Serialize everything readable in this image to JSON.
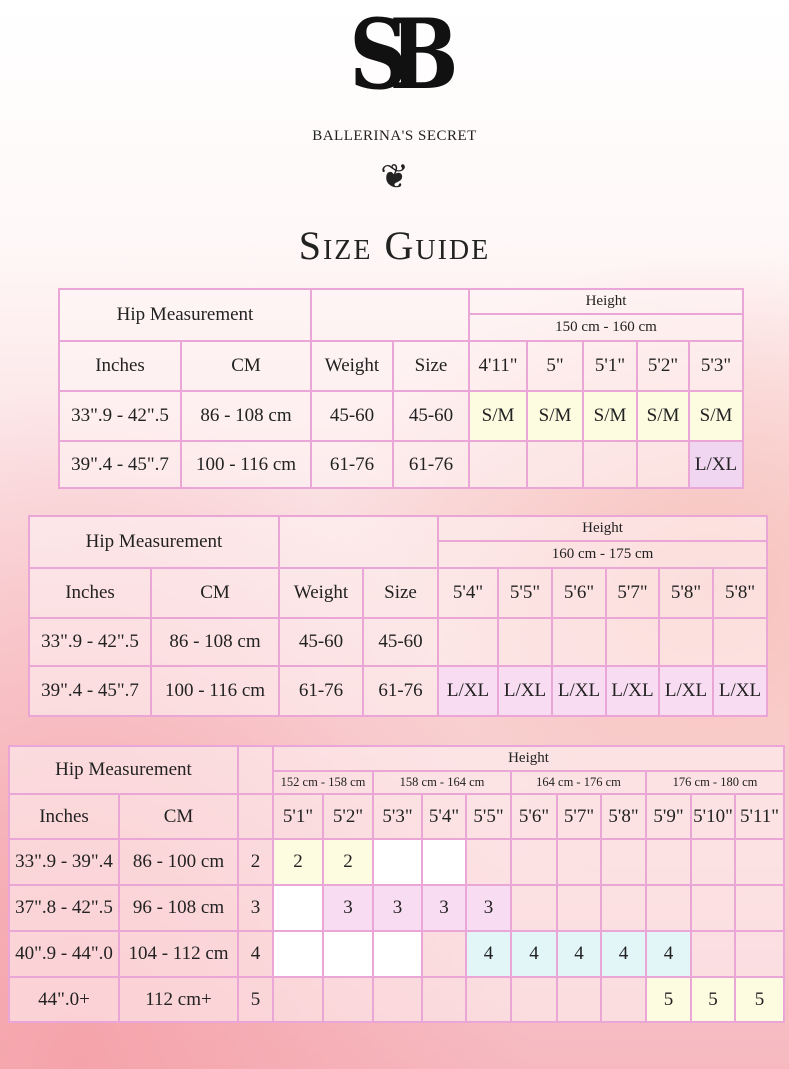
{
  "brand": {
    "monogram": "SB",
    "name": "BALLERINA'S SECRET",
    "ornament": "❦"
  },
  "title": "Size Guide",
  "colors": {
    "border": "#eaa6d6",
    "yellow": "#fdfbe0",
    "pink": "#f8dcf1",
    "blue": "#e2f6f8",
    "lavender": "#f1d6f1"
  },
  "tables": [
    {
      "hip_label": "Hip Measurement",
      "height_label": "Height",
      "ranges": [
        "150 cm - 160 cm"
      ],
      "columns": [
        "Inches",
        "CM",
        "Weight",
        "Size"
      ],
      "heights": [
        "4'11\"",
        "5\"",
        "5'1\"",
        "5'2\"",
        "5'3\""
      ],
      "rows": [
        {
          "cells": [
            "33\".9 - 42\".5",
            "86 - 108 cm",
            "45-60",
            "45-60"
          ],
          "sizes": [
            "S/M",
            "S/M",
            "S/M",
            "S/M",
            "S/M"
          ],
          "fills": [
            "yellow",
            "yellow",
            "yellow",
            "yellow",
            "yellow"
          ]
        },
        {
          "cells": [
            "39\".4 - 45\".7",
            "100 - 116 cm",
            "61-76",
            "61-76"
          ],
          "sizes": [
            "",
            "",
            "",
            "",
            "L/XL"
          ],
          "fills": [
            "",
            "",
            "",
            "",
            "lav"
          ]
        }
      ]
    },
    {
      "hip_label": "Hip Measurement",
      "height_label": "Height",
      "ranges": [
        "160 cm - 175 cm"
      ],
      "columns": [
        "Inches",
        "CM",
        "Weight",
        "Size"
      ],
      "heights": [
        "5'4\"",
        "5'5\"",
        "5'6\"",
        "5'7\"",
        "5'8\"",
        "5'8\""
      ],
      "rows": [
        {
          "cells": [
            "33\".9 - 42\".5",
            "86 - 108 cm",
            "45-60",
            "45-60"
          ],
          "sizes": [
            "",
            "",
            "",
            "",
            "",
            ""
          ],
          "fills": [
            "",
            "",
            "",
            "",
            "",
            ""
          ]
        },
        {
          "cells": [
            "39\".4 - 45\".7",
            "100 - 116 cm",
            "61-76",
            "61-76"
          ],
          "sizes": [
            "L/XL",
            "L/XL",
            "L/XL",
            "L/XL",
            "L/XL",
            "L/XL"
          ],
          "fills": [
            "pink",
            "pink",
            "pink",
            "pink",
            "pink",
            "pink"
          ]
        }
      ]
    },
    {
      "hip_label": "Hip Measurement",
      "height_label": "Height",
      "ranges": [
        "152 cm - 158 cm",
        "158 cm - 164 cm",
        "164 cm - 176 cm",
        "176 cm - 180 cm"
      ],
      "columns": [
        "Inches",
        "CM",
        ""
      ],
      "heights": [
        "5'1\"",
        "5'2\"",
        "5'3\"",
        "5'4\"",
        "5'5\"",
        "5'6\"",
        "5'7\"",
        "5'8\"",
        "5'9\"",
        "5'10\"",
        "5'11\""
      ],
      "rows": [
        {
          "cells": [
            "33\".9 - 39\".4",
            "86 - 100 cm",
            "2"
          ],
          "sizes": [
            "2",
            "2",
            "",
            "",
            "",
            "",
            "",
            "",
            "",
            "",
            ""
          ],
          "fills": [
            "yellow",
            "yellow",
            "white",
            "white",
            "",
            "",
            "",
            "",
            "",
            "",
            ""
          ]
        },
        {
          "cells": [
            "37\".8 - 42\".5",
            "96 - 108 cm",
            "3"
          ],
          "sizes": [
            "",
            "3",
            "3",
            "3",
            "3",
            "",
            "",
            "",
            "",
            "",
            ""
          ],
          "fills": [
            "white",
            "pink",
            "pink",
            "pink",
            "pink",
            "",
            "",
            "",
            "",
            "",
            ""
          ]
        },
        {
          "cells": [
            "40\".9 - 44\".0",
            "104 - 112 cm",
            "4"
          ],
          "sizes": [
            "",
            "",
            "",
            "",
            "4",
            "4",
            "4",
            "4",
            "4",
            "",
            ""
          ],
          "fills": [
            "white",
            "white",
            "white",
            "",
            "blue",
            "blue",
            "blue",
            "blue",
            "blue",
            "",
            ""
          ]
        },
        {
          "cells": [
            "44\".0+",
            "112 cm+",
            "5"
          ],
          "sizes": [
            "",
            "",
            "",
            "",
            "",
            "",
            "",
            "",
            "5",
            "5",
            "5"
          ],
          "fills": [
            "",
            "",
            "",
            "",
            "",
            "",
            "",
            "",
            "yellow",
            "yellow",
            "yellow"
          ]
        }
      ]
    }
  ]
}
